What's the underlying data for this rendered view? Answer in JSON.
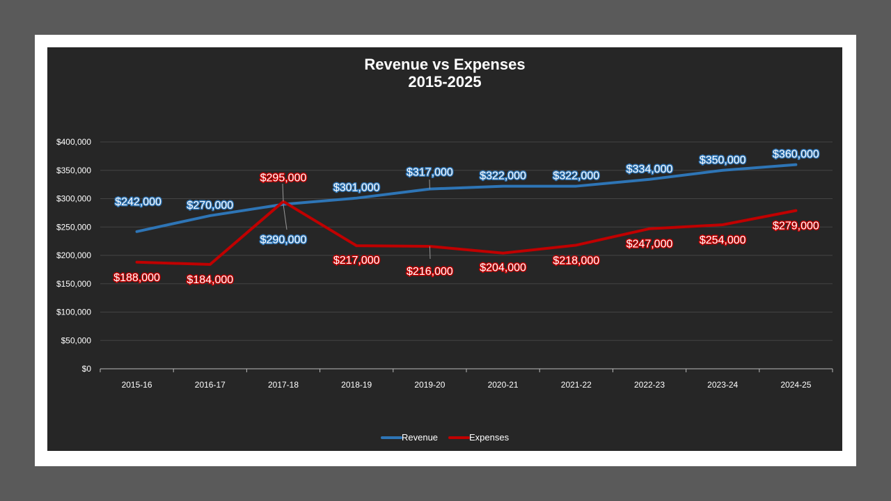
{
  "chart_data": {
    "type": "line",
    "title": "Revenue vs Expenses",
    "subtitle": "2015-2025",
    "xlabel": "",
    "ylabel": "",
    "categories": [
      "2015-16",
      "2016-17",
      "2017-18",
      "2018-19",
      "2019-20",
      "2020-21",
      "2021-22",
      "2022-23",
      "2023-24",
      "2024-25"
    ],
    "ylim": [
      0,
      400000
    ],
    "yticks": [
      0,
      50000,
      100000,
      150000,
      200000,
      250000,
      300000,
      350000,
      400000
    ],
    "ytick_labels": [
      "$0",
      "$50,000",
      "$100,000",
      "$150,000",
      "$200,000",
      "$250,000",
      "$300,000",
      "$350,000",
      "$400,000"
    ],
    "grid": true,
    "legend_position": "bottom",
    "series": [
      {
        "name": "Revenue",
        "color": "#2e75b6",
        "values": [
          242000,
          270000,
          290000,
          301000,
          317000,
          322000,
          322000,
          334000,
          350000,
          360000
        ],
        "labels": [
          "$242,000",
          "$270,000",
          "$290,000",
          "$301,000",
          "$317,000",
          "$322,000",
          "$322,000",
          "$334,000",
          "$350,000",
          "$360,000"
        ]
      },
      {
        "name": "Expenses",
        "color": "#c00000",
        "values": [
          188000,
          184000,
          295000,
          217000,
          216000,
          204000,
          218000,
          247000,
          254000,
          279000
        ],
        "labels": [
          "$188,000",
          "$184,000",
          "$295,000",
          "$217,000",
          "$216,000",
          "$204,000",
          "$218,000",
          "$247,000",
          "$254,000",
          "$279,000"
        ]
      }
    ]
  }
}
